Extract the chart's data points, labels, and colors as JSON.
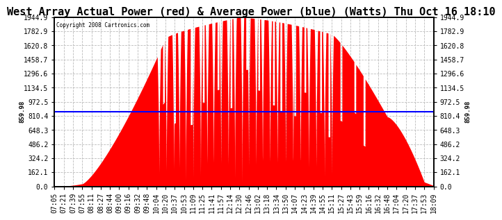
{
  "title": "West Array Actual Power (red) & Average Power (blue) (Watts) Thu Oct 16 18:10",
  "copyright": "Copyright 2008 Cartronics.com",
  "ymin": 0.0,
  "ymax": 1944.9,
  "yticks": [
    0.0,
    162.1,
    324.2,
    486.2,
    648.3,
    810.4,
    972.5,
    1134.5,
    1296.6,
    1458.7,
    1620.8,
    1782.9,
    1944.9
  ],
  "average_power": 859.98,
  "avg_label": "859.98",
  "fill_color": "#FF0000",
  "line_color": "#0000FF",
  "background_color": "#FFFFFF",
  "grid_color": "#BBBBBB",
  "title_fontsize": 11,
  "tick_fontsize": 7,
  "xtick_labels": [
    "07:05",
    "07:21",
    "07:39",
    "07:55",
    "08:11",
    "08:27",
    "08:44",
    "09:00",
    "09:16",
    "09:32",
    "09:48",
    "10:04",
    "10:20",
    "10:37",
    "10:53",
    "11:09",
    "11:25",
    "11:41",
    "11:57",
    "12:14",
    "12:30",
    "12:46",
    "13:02",
    "13:18",
    "13:34",
    "13:50",
    "14:07",
    "14:23",
    "14:39",
    "14:55",
    "15:11",
    "15:27",
    "15:43",
    "15:59",
    "16:16",
    "16:32",
    "16:48",
    "17:04",
    "17:20",
    "17:37",
    "17:53",
    "18:09"
  ]
}
